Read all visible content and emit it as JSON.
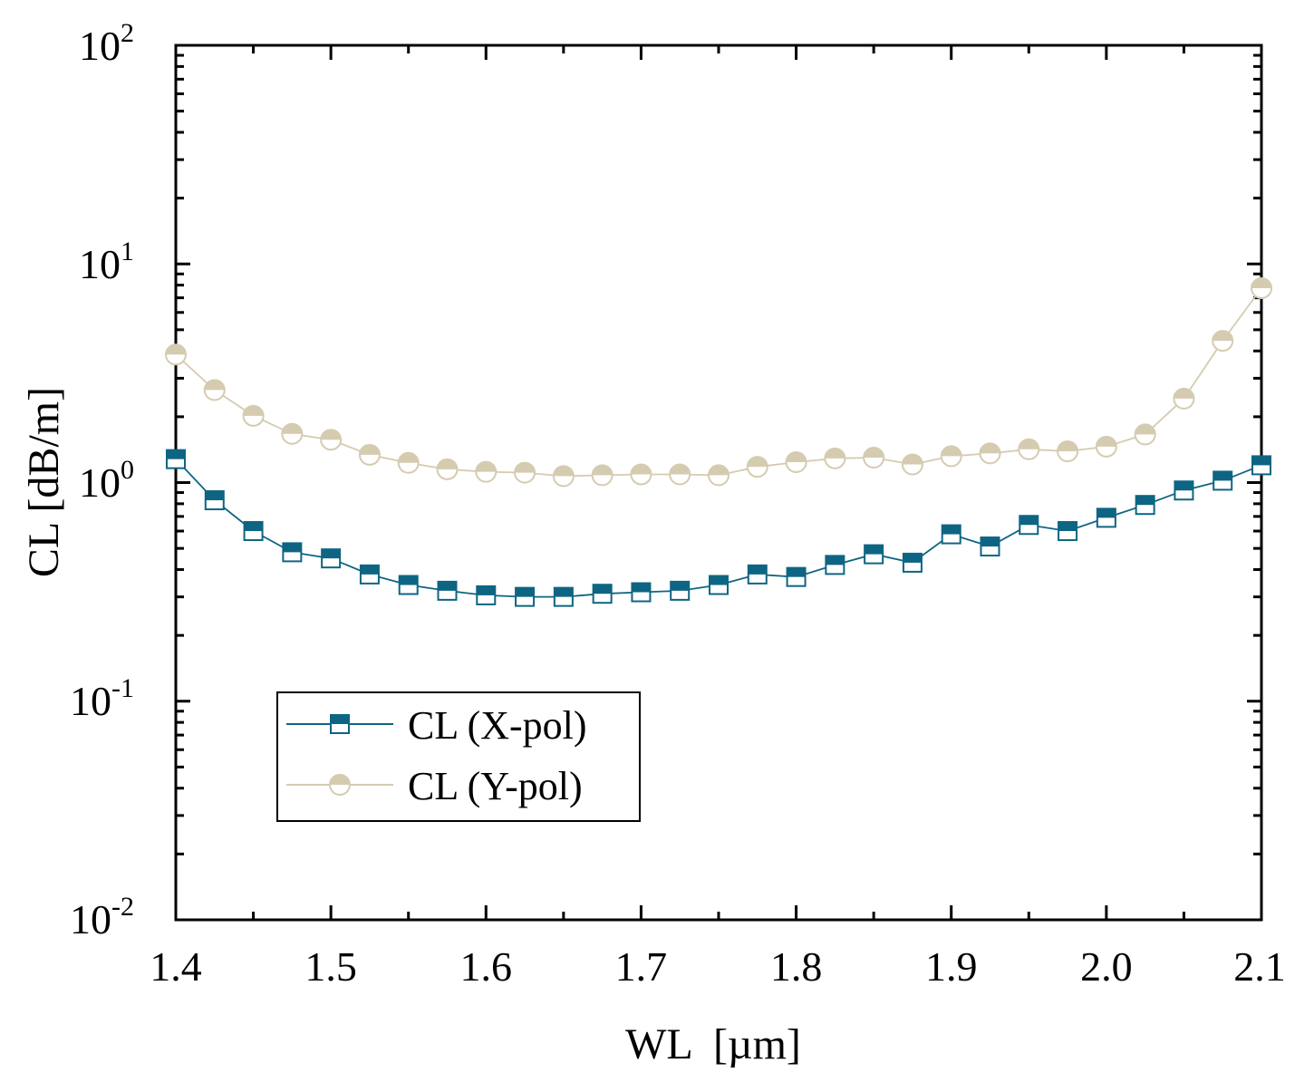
{
  "chart_data": {
    "type": "line",
    "title": "",
    "xlabel": "WL  [µm]",
    "ylabel": "CL [dB/m]",
    "yscale": "log",
    "xlim": [
      1.4,
      2.1
    ],
    "ylim": [
      0.01,
      100
    ],
    "grid": false,
    "legend_position": "lower-left",
    "x_ticks": [
      "1.4",
      "1.5",
      "1.6",
      "1.7",
      "1.8",
      "1.9",
      "2.0",
      "2.1"
    ],
    "y_ticks": [
      {
        "base": "10",
        "exp": "2",
        "value": 100
      },
      {
        "base": "10",
        "exp": "1",
        "value": 10
      },
      {
        "base": "10",
        "exp": "0",
        "value": 1
      },
      {
        "base": "10",
        "exp": "-1",
        "value": 0.1
      },
      {
        "base": "10",
        "exp": "-2",
        "value": 0.01
      }
    ],
    "x": [
      1.4,
      1.425,
      1.45,
      1.475,
      1.5,
      1.525,
      1.55,
      1.575,
      1.6,
      1.625,
      1.65,
      1.675,
      1.7,
      1.725,
      1.75,
      1.775,
      1.8,
      1.825,
      1.85,
      1.875,
      1.9,
      1.925,
      1.95,
      1.975,
      2.0,
      2.025,
      2.05,
      2.075,
      2.1
    ],
    "series": [
      {
        "name": "CL (X-pol)",
        "color": "#0e6583",
        "marker": "square",
        "values": [
          1.28,
          0.83,
          0.6,
          0.48,
          0.45,
          0.38,
          0.34,
          0.32,
          0.305,
          0.3,
          0.3,
          0.31,
          0.315,
          0.32,
          0.34,
          0.38,
          0.37,
          0.42,
          0.47,
          0.43,
          0.58,
          0.51,
          0.64,
          0.6,
          0.69,
          0.79,
          0.92,
          1.02,
          1.2
        ]
      },
      {
        "name": "CL (Y-pol)",
        "color": "#d5cbb0",
        "marker": "circle",
        "values": [
          3.85,
          2.65,
          2.02,
          1.67,
          1.57,
          1.34,
          1.23,
          1.15,
          1.12,
          1.11,
          1.07,
          1.08,
          1.09,
          1.09,
          1.08,
          1.18,
          1.24,
          1.29,
          1.3,
          1.21,
          1.32,
          1.36,
          1.42,
          1.39,
          1.46,
          1.66,
          2.42,
          4.45,
          7.75
        ]
      }
    ]
  }
}
